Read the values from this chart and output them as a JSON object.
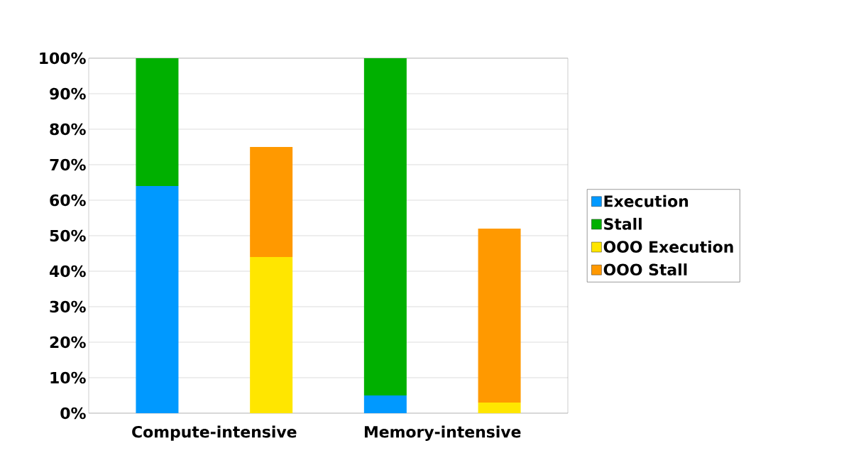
{
  "chart_data": {
    "type": "bar",
    "stacked": true,
    "categories": [
      null,
      null,
      null,
      null
    ],
    "series": [
      {
        "name": "Execution",
        "color": "#0099ff",
        "values": [
          64,
          null,
          5,
          null
        ]
      },
      {
        "name": "Stall",
        "color": "#00b000",
        "values": [
          36,
          null,
          95,
          null
        ]
      },
      {
        "name": "OOO Execution",
        "color": "#ffe600",
        "values": [
          null,
          44,
          null,
          3
        ]
      },
      {
        "name": "OOO Stall",
        "color": "#ff9900",
        "values": [
          null,
          31,
          null,
          49
        ]
      }
    ],
    "annotations": [
      "Compute-intensive",
      "Memory-intensive"
    ],
    "ylim": [
      0,
      100
    ],
    "yticks": [
      {
        "value": 0,
        "label": "0%"
      },
      {
        "value": 10,
        "label": "10%"
      },
      {
        "value": 20,
        "label": "20%"
      },
      {
        "value": 30,
        "label": "30%"
      },
      {
        "value": 40,
        "label": "40%"
      },
      {
        "value": 50,
        "label": "50%"
      },
      {
        "value": 60,
        "label": "60%"
      },
      {
        "value": 70,
        "label": "70%"
      },
      {
        "value": 80,
        "label": "80%"
      },
      {
        "value": 90,
        "label": "90%"
      },
      {
        "value": 100,
        "label": "100%"
      }
    ],
    "grid": "y",
    "legend": "right"
  }
}
